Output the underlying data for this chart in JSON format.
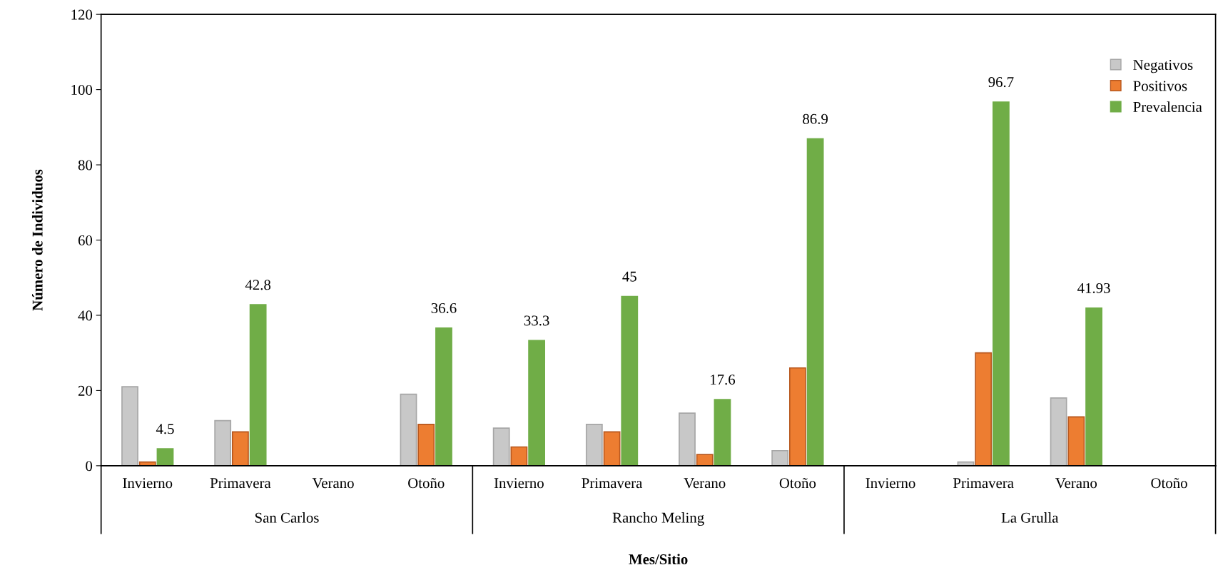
{
  "chart_data": {
    "type": "bar",
    "xlabel": "Mes/Sitio",
    "ylabel": "Número de Individuos",
    "categories": [
      "Invierno",
      "Primavera",
      "Verano",
      "Otoño",
      "Invierno",
      "Primavera",
      "Verano",
      "Otoño",
      "Invierno",
      "Primavera",
      "Verano",
      "Otoño"
    ],
    "annotations": [
      "San Carlos",
      "Rancho Meling",
      "La Grulla"
    ],
    "series": [
      {
        "name": "Negativos",
        "color": "#c8c8c8",
        "values": [
          21,
          12,
          null,
          19,
          10,
          11,
          14,
          4,
          null,
          1,
          18,
          null
        ]
      },
      {
        "name": "Positivos",
        "color": "#ed7d31",
        "values": [
          1,
          9,
          null,
          11,
          5,
          9,
          3,
          26,
          null,
          30,
          13,
          null
        ]
      },
      {
        "name": "Prevalencia",
        "color": "#70ad47",
        "values": [
          4.5,
          42.8,
          null,
          36.6,
          33.3,
          45,
          17.6,
          86.9,
          null,
          96.7,
          41.93,
          null
        ],
        "value_labels": [
          "4.5",
          "42.8",
          null,
          "36.6",
          "33.3",
          "45",
          "17.6",
          "86.9",
          null,
          "96.7",
          "41.93",
          null
        ]
      }
    ],
    "ylim": [
      0,
      120
    ],
    "yticks": [
      0,
      20,
      40,
      60,
      80,
      100,
      120
    ],
    "grid": false,
    "legend": "top right"
  }
}
